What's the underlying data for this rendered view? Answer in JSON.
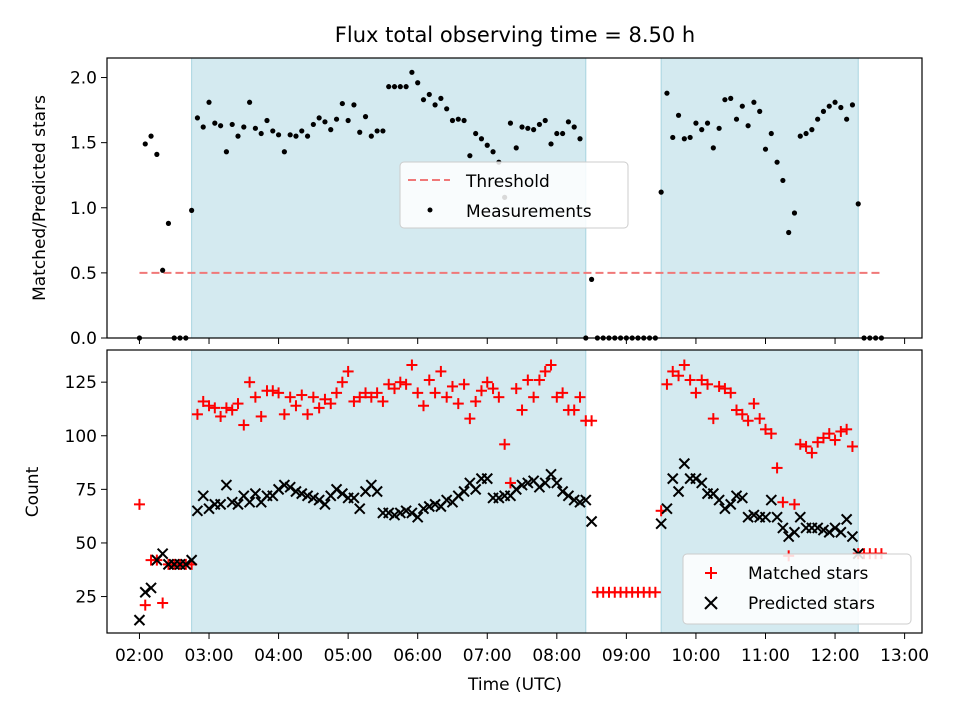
{
  "title": "Flux total observing time = 8.50 h",
  "chart_data": [
    {
      "type": "scatter",
      "ylabel": "Matched/Predicted stars",
      "xlabel": "",
      "ylim": [
        0,
        2.15
      ],
      "yticks": [
        0.0,
        0.5,
        1.0,
        1.5,
        2.0
      ],
      "ytick_labels": [
        "0.0",
        "0.5",
        "1.0",
        "1.5",
        "2.0"
      ],
      "grid": false,
      "legend_placement": "center",
      "shaded_intervals": [
        [
          "02:45",
          "08:25"
        ],
        [
          "09:30",
          "12:20"
        ]
      ],
      "shade_color": "#d4eaf0",
      "threshold": {
        "name": "Threshold",
        "value": 0.5,
        "x_range": [
          "02:00",
          "12:40"
        ],
        "color": "#f07878"
      },
      "series": [
        {
          "name": "Measurements",
          "color": "#000000",
          "x": [
            "02:00",
            "02:05",
            "02:10",
            "02:15",
            "02:20",
            "02:25",
            "02:30",
            "02:35",
            "02:40",
            "02:45",
            "02:50",
            "02:55",
            "03:00",
            "03:05",
            "03:10",
            "03:15",
            "03:20",
            "03:25",
            "03:30",
            "03:35",
            "03:40",
            "03:45",
            "03:50",
            "03:55",
            "04:00",
            "04:05",
            "04:10",
            "04:15",
            "04:20",
            "04:25",
            "04:30",
            "04:35",
            "04:40",
            "04:45",
            "04:50",
            "04:55",
            "05:00",
            "05:05",
            "05:10",
            "05:15",
            "05:20",
            "05:25",
            "05:30",
            "05:35",
            "05:40",
            "05:45",
            "05:50",
            "05:55",
            "06:00",
            "06:05",
            "06:10",
            "06:15",
            "06:20",
            "06:25",
            "06:30",
            "06:35",
            "06:40",
            "06:45",
            "06:50",
            "06:55",
            "07:00",
            "07:05",
            "07:10",
            "07:15",
            "07:20",
            "07:25",
            "07:30",
            "07:35",
            "07:40",
            "07:45",
            "07:50",
            "07:55",
            "08:00",
            "08:05",
            "08:10",
            "08:15",
            "08:20",
            "08:25",
            "08:30",
            "08:35",
            "08:40",
            "08:45",
            "08:50",
            "08:55",
            "09:00",
            "09:05",
            "09:10",
            "09:15",
            "09:20",
            "09:25",
            "09:30",
            "09:35",
            "09:40",
            "09:45",
            "09:50",
            "09:55",
            "10:00",
            "10:05",
            "10:10",
            "10:15",
            "10:20",
            "10:25",
            "10:30",
            "10:35",
            "10:40",
            "10:45",
            "10:50",
            "10:55",
            "11:00",
            "11:05",
            "11:10",
            "11:15",
            "11:20",
            "11:25",
            "11:30",
            "11:35",
            "11:40",
            "11:45",
            "11:50",
            "11:55",
            "12:00",
            "12:05",
            "12:10",
            "12:15",
            "12:20",
            "12:25",
            "12:30",
            "12:35",
            "12:40"
          ],
          "y": [
            0.0,
            1.49,
            1.55,
            1.41,
            0.52,
            0.88,
            0.0,
            0.0,
            0.0,
            0.98,
            1.69,
            1.62,
            1.81,
            1.65,
            1.63,
            1.43,
            1.64,
            1.55,
            1.62,
            1.81,
            1.61,
            1.57,
            1.67,
            1.59,
            1.56,
            1.43,
            1.56,
            1.55,
            1.59,
            1.55,
            1.64,
            1.69,
            1.66,
            1.6,
            1.68,
            1.8,
            1.67,
            1.79,
            1.58,
            1.7,
            1.55,
            1.59,
            1.59,
            1.93,
            1.93,
            1.93,
            1.93,
            2.04,
            1.96,
            1.83,
            1.87,
            1.79,
            1.84,
            1.76,
            1.67,
            1.68,
            1.67,
            1.4,
            1.57,
            1.53,
            1.48,
            1.43,
            1.35,
            1.08,
            1.65,
            1.46,
            1.62,
            1.61,
            1.6,
            1.64,
            1.67,
            1.49,
            1.57,
            1.57,
            1.66,
            1.62,
            1.53,
            0.0,
            0.45,
            0.0,
            0.0,
            0.0,
            0.0,
            0.0,
            0.0,
            0.0,
            0.0,
            0.0,
            0.0,
            0.0,
            1.12,
            1.88,
            1.54,
            1.71,
            1.53,
            1.54,
            1.65,
            1.6,
            1.65,
            1.46,
            1.61,
            1.83,
            1.84,
            1.68,
            1.78,
            1.63,
            1.81,
            1.74,
            1.45,
            1.57,
            1.35,
            1.21,
            0.81,
            0.96,
            1.55,
            1.57,
            1.6,
            1.68,
            1.74,
            1.78,
            1.81,
            1.77,
            1.68,
            1.79,
            1.03,
            0.0,
            0.0,
            0.0,
            0.0
          ]
        }
      ],
      "legend": [
        "Threshold",
        "Measurements"
      ]
    },
    {
      "type": "scatter",
      "ylabel": "Count",
      "xlabel": "Time (UTC)",
      "ylim": [
        8,
        140
      ],
      "yticks": [
        25,
        50,
        75,
        100,
        125
      ],
      "ytick_labels": [
        "25",
        "50",
        "75",
        "100",
        "125"
      ],
      "xlim": [
        "01:32",
        "13:15"
      ],
      "xticks": [
        "02:00",
        "03:00",
        "04:00",
        "05:00",
        "06:00",
        "07:00",
        "08:00",
        "09:00",
        "10:00",
        "11:00",
        "12:00",
        "13:00"
      ],
      "grid": false,
      "legend_placement": "bottom-right",
      "shaded_intervals": [
        [
          "02:45",
          "08:25"
        ],
        [
          "09:30",
          "12:20"
        ]
      ],
      "shade_color": "#d4eaf0",
      "series": [
        {
          "name": "Matched stars",
          "marker": "plus",
          "color": "#ff0000",
          "x": [
            "02:00",
            "02:05",
            "02:10",
            "02:15",
            "02:20",
            "02:25",
            "02:30",
            "02:35",
            "02:40",
            "02:45",
            "02:50",
            "02:55",
            "03:00",
            "03:05",
            "03:10",
            "03:15",
            "03:20",
            "03:25",
            "03:30",
            "03:35",
            "03:40",
            "03:45",
            "03:50",
            "03:55",
            "04:00",
            "04:05",
            "04:10",
            "04:15",
            "04:20",
            "04:25",
            "04:30",
            "04:35",
            "04:40",
            "04:45",
            "04:50",
            "04:55",
            "05:00",
            "05:05",
            "05:10",
            "05:15",
            "05:20",
            "05:25",
            "05:30",
            "05:35",
            "05:40",
            "05:45",
            "05:50",
            "05:55",
            "06:00",
            "06:05",
            "06:10",
            "06:15",
            "06:20",
            "06:25",
            "06:30",
            "06:35",
            "06:40",
            "06:45",
            "06:50",
            "06:55",
            "07:00",
            "07:05",
            "07:10",
            "07:15",
            "07:20",
            "07:25",
            "07:30",
            "07:35",
            "07:40",
            "07:45",
            "07:50",
            "07:55",
            "08:00",
            "08:05",
            "08:10",
            "08:15",
            "08:20",
            "08:25",
            "08:30",
            "08:35",
            "08:40",
            "08:45",
            "08:50",
            "08:55",
            "09:00",
            "09:05",
            "09:10",
            "09:15",
            "09:20",
            "09:25",
            "09:30",
            "09:35",
            "09:40",
            "09:45",
            "09:50",
            "09:55",
            "10:00",
            "10:05",
            "10:10",
            "10:15",
            "10:20",
            "10:25",
            "10:30",
            "10:35",
            "10:40",
            "10:45",
            "10:50",
            "10:55",
            "11:00",
            "11:05",
            "11:10",
            "11:15",
            "11:20",
            "11:25",
            "11:30",
            "11:35",
            "11:40",
            "11:45",
            "11:50",
            "11:55",
            "12:00",
            "12:05",
            "12:10",
            "12:15",
            "12:20",
            "12:25",
            "12:30",
            "12:35",
            "12:40"
          ],
          "y": [
            68,
            21,
            42,
            42,
            22,
            40,
            40,
            40,
            40,
            40,
            110,
            116,
            114,
            113,
            109,
            113,
            112,
            115,
            105,
            125,
            118,
            109,
            121,
            121,
            120,
            110,
            118,
            114,
            119,
            110,
            118,
            113,
            117,
            115,
            120,
            125,
            130,
            116,
            118,
            120,
            118,
            120,
            116,
            124,
            122,
            125,
            124,
            133,
            120,
            114,
            126,
            120,
            130,
            118,
            123,
            115,
            124,
            108,
            116,
            121,
            125,
            122,
            118,
            96,
            78,
            122,
            112,
            126,
            118,
            126,
            130,
            133,
            118,
            120,
            112,
            112,
            118,
            107,
            107,
            27,
            27,
            27,
            27,
            27,
            27,
            27,
            27,
            27,
            27,
            27,
            65,
            124,
            130,
            128,
            133,
            126,
            120,
            126,
            124,
            108,
            123,
            122,
            120,
            112,
            110,
            107,
            115,
            108,
            103,
            101,
            85,
            69,
            44,
            68,
            96,
            95,
            92,
            97,
            99,
            101,
            98,
            102,
            103,
            95,
            45,
            45,
            45,
            45,
            45
          ]
        },
        {
          "name": "Predicted stars",
          "marker": "x",
          "color": "#000000",
          "x": [
            "02:00",
            "02:05",
            "02:10",
            "02:15",
            "02:20",
            "02:25",
            "02:30",
            "02:35",
            "02:40",
            "02:45",
            "02:50",
            "02:55",
            "03:00",
            "03:05",
            "03:10",
            "03:15",
            "03:20",
            "03:25",
            "03:30",
            "03:35",
            "03:40",
            "03:45",
            "03:50",
            "03:55",
            "04:00",
            "04:05",
            "04:10",
            "04:15",
            "04:20",
            "04:25",
            "04:30",
            "04:35",
            "04:40",
            "04:45",
            "04:50",
            "04:55",
            "05:00",
            "05:05",
            "05:10",
            "05:15",
            "05:20",
            "05:25",
            "05:30",
            "05:35",
            "05:40",
            "05:45",
            "05:50",
            "05:55",
            "06:00",
            "06:05",
            "06:10",
            "06:15",
            "06:20",
            "06:25",
            "06:30",
            "06:35",
            "06:40",
            "06:45",
            "06:50",
            "06:55",
            "07:00",
            "07:05",
            "07:10",
            "07:15",
            "07:20",
            "07:25",
            "07:30",
            "07:35",
            "07:40",
            "07:45",
            "07:50",
            "07:55",
            "08:00",
            "08:05",
            "08:10",
            "08:15",
            "08:20",
            "08:25",
            "08:30",
            "09:30",
            "09:35",
            "09:40",
            "09:45",
            "09:50",
            "09:55",
            "10:00",
            "10:05",
            "10:10",
            "10:15",
            "10:20",
            "10:25",
            "10:30",
            "10:35",
            "10:40",
            "10:45",
            "10:50",
            "10:55",
            "11:00",
            "11:05",
            "11:10",
            "11:15",
            "11:20",
            "11:25",
            "11:30",
            "11:35",
            "11:40",
            "11:45",
            "11:50",
            "11:55",
            "12:00",
            "12:05",
            "12:10",
            "12:15",
            "12:20"
          ],
          "y": [
            14,
            27,
            29,
            42,
            45,
            40,
            40,
            40,
            40,
            42,
            65,
            72,
            66,
            68,
            68,
            77,
            69,
            68,
            72,
            69,
            73,
            69,
            72,
            72,
            75,
            77,
            76,
            74,
            73,
            72,
            71,
            70,
            68,
            72,
            75,
            73,
            71,
            71,
            66,
            74,
            77,
            74,
            64,
            64,
            63,
            64,
            65,
            64,
            62,
            66,
            67,
            68,
            67,
            70,
            69,
            72,
            74,
            78,
            75,
            80,
            80,
            71,
            71,
            72,
            72,
            75,
            77,
            78,
            79,
            76,
            78,
            82,
            78,
            74,
            72,
            70,
            69,
            70,
            60,
            59,
            66,
            80,
            74,
            87,
            80,
            80,
            78,
            73,
            73,
            70,
            66,
            68,
            72,
            71,
            62,
            63,
            62,
            62,
            70,
            62,
            57,
            53,
            55,
            62,
            57,
            57,
            57,
            56,
            55,
            57,
            55,
            61,
            53,
            45
          ]
        }
      ],
      "legend": [
        "Matched stars",
        "Predicted stars"
      ]
    }
  ]
}
